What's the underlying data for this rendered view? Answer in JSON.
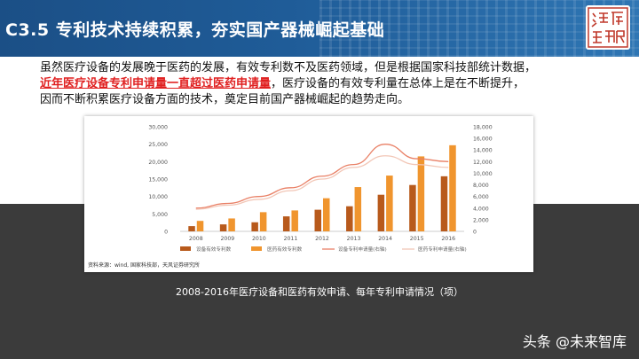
{
  "header": {
    "title": "C3.5  专利技术持续积累，夯实国产器械崛起基础",
    "logo_text": "深度研究"
  },
  "intro": {
    "line1": "虽然医疗设备的发展晚于医药的发展，有效专利数不及医药领域，但是根据国家科技部统计数据，",
    "highlight": "近年医疗设备专利申请量一直超过医药申请量",
    "line2_rest": "，医疗设备的有效专利量在总体上是在不断提升，",
    "line3": "因而不断积累医疗设备方面的技术，奠定目前国产器械崛起的趋势走向。"
  },
  "chart_data": {
    "type": "bar",
    "categories": [
      "2008",
      "2009",
      "2010",
      "2011",
      "2012",
      "2013",
      "2014",
      "2015",
      "2016"
    ],
    "series": [
      {
        "name": "设备有效专利数",
        "kind": "bar",
        "axis": "left",
        "color": "#b85a1c",
        "values": [
          1500,
          2000,
          2600,
          4300,
          6200,
          7200,
          10500,
          13300,
          15800
        ]
      },
      {
        "name": "医药有效专利数",
        "kind": "bar",
        "axis": "left",
        "color": "#f0952e",
        "values": [
          3000,
          3700,
          5500,
          6000,
          9500,
          12700,
          16000,
          21500,
          24700
        ]
      },
      {
        "name": "设备专利申请量(右轴)",
        "kind": "line",
        "axis": "right",
        "color": "#e98066",
        "values": [
          4000,
          4800,
          6000,
          7500,
          9500,
          11500,
          15000,
          12500,
          12000
        ]
      },
      {
        "name": "医药专利申请量(右轴)",
        "kind": "line",
        "axis": "right",
        "color": "#f2c6b6",
        "values": [
          3800,
          4500,
          5500,
          7000,
          9000,
          11000,
          13000,
          11500,
          11000
        ]
      }
    ],
    "left_axis": {
      "ticks": [
        "0",
        "5,000",
        "10,000",
        "15,000",
        "20,000",
        "25,000",
        "30,000"
      ],
      "ylim": [
        0,
        30000
      ]
    },
    "right_axis": {
      "ticks": [
        "0",
        "2,000",
        "4,000",
        "6,000",
        "8,000",
        "10,000",
        "12,000",
        "14,000",
        "16,000",
        "18,000"
      ],
      "ylim": [
        0,
        18000
      ]
    },
    "legend_position": "bottom",
    "grid": false
  },
  "source": "资料来源：wind, 国家科技部，天风证券研究所",
  "caption": "2008-2016年医疗设备和医药有效申请、每年专利申请情况（项）",
  "watermark": "头条 @未来智库",
  "colors": {
    "header": "#1f5c98",
    "highlight": "#e02020",
    "band": "#3b3b3b"
  }
}
